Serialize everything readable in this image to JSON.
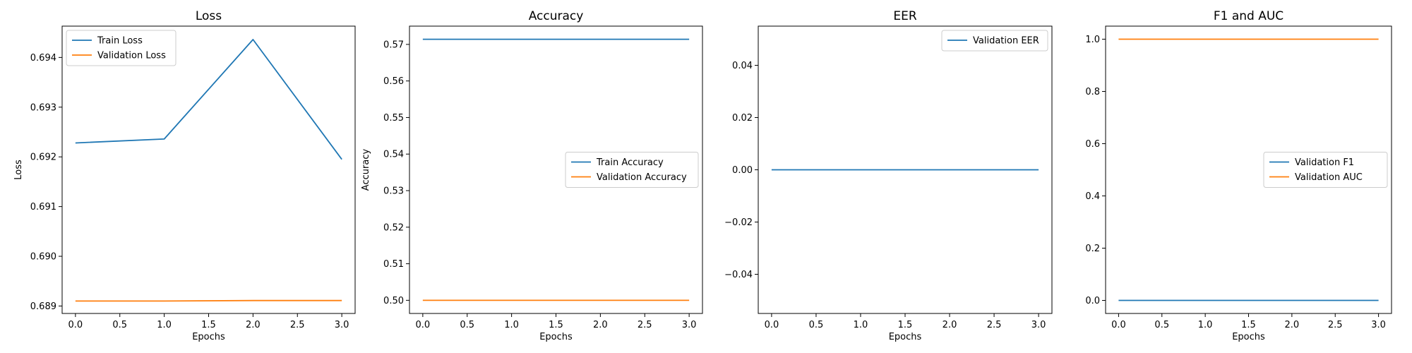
{
  "chart_data": [
    {
      "type": "line",
      "title": "Loss",
      "xlabel": "Epochs",
      "ylabel": "Loss",
      "x": [
        0,
        1,
        2,
        3
      ],
      "xlim": [
        -0.15,
        3.15
      ],
      "ylim": [
        0.68885,
        0.69463
      ],
      "xticks": [
        0.0,
        0.5,
        1.0,
        1.5,
        2.0,
        2.5,
        3.0
      ],
      "xtick_labels": [
        "0.0",
        "0.5",
        "1.0",
        "1.5",
        "2.0",
        "2.5",
        "3.0"
      ],
      "yticks": [
        0.689,
        0.69,
        0.691,
        0.692,
        0.693,
        0.694
      ],
      "ytick_labels": [
        "0.689",
        "0.690",
        "0.691",
        "0.692",
        "0.693",
        "0.694"
      ],
      "legend_position": "upper-left",
      "series": [
        {
          "name": "Train Loss",
          "color": "#1f77b4",
          "values": [
            0.69228,
            0.69236,
            0.69436,
            0.69195
          ]
        },
        {
          "name": "Validation Loss",
          "color": "#ff7f0e",
          "values": [
            0.6891,
            0.6891,
            0.68911,
            0.68911
          ]
        }
      ]
    },
    {
      "type": "line",
      "title": "Accuracy",
      "xlabel": "Epochs",
      "ylabel": "Accuracy",
      "x": [
        0,
        1,
        2,
        3
      ],
      "xlim": [
        -0.15,
        3.15
      ],
      "ylim": [
        0.4964,
        0.575
      ],
      "xticks": [
        0.0,
        0.5,
        1.0,
        1.5,
        2.0,
        2.5,
        3.0
      ],
      "xtick_labels": [
        "0.0",
        "0.5",
        "1.0",
        "1.5",
        "2.0",
        "2.5",
        "3.0"
      ],
      "yticks": [
        0.5,
        0.51,
        0.52,
        0.53,
        0.54,
        0.55,
        0.56,
        0.57
      ],
      "ytick_labels": [
        "0.50",
        "0.51",
        "0.52",
        "0.53",
        "0.54",
        "0.55",
        "0.56",
        "0.57"
      ],
      "legend_position": "center-right",
      "series": [
        {
          "name": "Train Accuracy",
          "color": "#1f77b4",
          "values": [
            0.5714,
            0.5714,
            0.5714,
            0.5714
          ]
        },
        {
          "name": "Validation Accuracy",
          "color": "#ff7f0e",
          "values": [
            0.5,
            0.5,
            0.5,
            0.5
          ]
        }
      ]
    },
    {
      "type": "line",
      "title": "EER",
      "xlabel": "Epochs",
      "ylabel": "",
      "x": [
        0,
        1,
        2,
        3
      ],
      "xlim": [
        -0.15,
        3.15
      ],
      "ylim": [
        -0.055,
        0.055
      ],
      "xticks": [
        0.0,
        0.5,
        1.0,
        1.5,
        2.0,
        2.5,
        3.0
      ],
      "xtick_labels": [
        "0.0",
        "0.5",
        "1.0",
        "1.5",
        "2.0",
        "2.5",
        "3.0"
      ],
      "yticks": [
        -0.04,
        -0.02,
        0.0,
        0.02,
        0.04
      ],
      "ytick_labels": [
        "−0.04",
        "−0.02",
        "0.00",
        "0.02",
        "0.04"
      ],
      "legend_position": "upper-right",
      "series": [
        {
          "name": "Validation EER",
          "color": "#1f77b4",
          "values": [
            0.0,
            0.0,
            0.0,
            0.0
          ]
        }
      ]
    },
    {
      "type": "line",
      "title": "F1 and AUC",
      "xlabel": "Epochs",
      "ylabel": "",
      "x": [
        0,
        1,
        2,
        3
      ],
      "xlim": [
        -0.15,
        3.15
      ],
      "ylim": [
        -0.05,
        1.05
      ],
      "xticks": [
        0.0,
        0.5,
        1.0,
        1.5,
        2.0,
        2.5,
        3.0
      ],
      "xtick_labels": [
        "0.0",
        "0.5",
        "1.0",
        "1.5",
        "2.0",
        "2.5",
        "3.0"
      ],
      "yticks": [
        0.0,
        0.2,
        0.4,
        0.6,
        0.8,
        1.0
      ],
      "ytick_labels": [
        "0.0",
        "0.2",
        "0.4",
        "0.6",
        "0.8",
        "1.0"
      ],
      "legend_position": "center-right",
      "series": [
        {
          "name": "Validation F1",
          "color": "#1f77b4",
          "values": [
            0.0,
            0.0,
            0.0,
            0.0
          ]
        },
        {
          "name": "Validation AUC",
          "color": "#ff7f0e",
          "values": [
            1.0,
            1.0,
            1.0,
            1.0
          ]
        }
      ]
    }
  ]
}
